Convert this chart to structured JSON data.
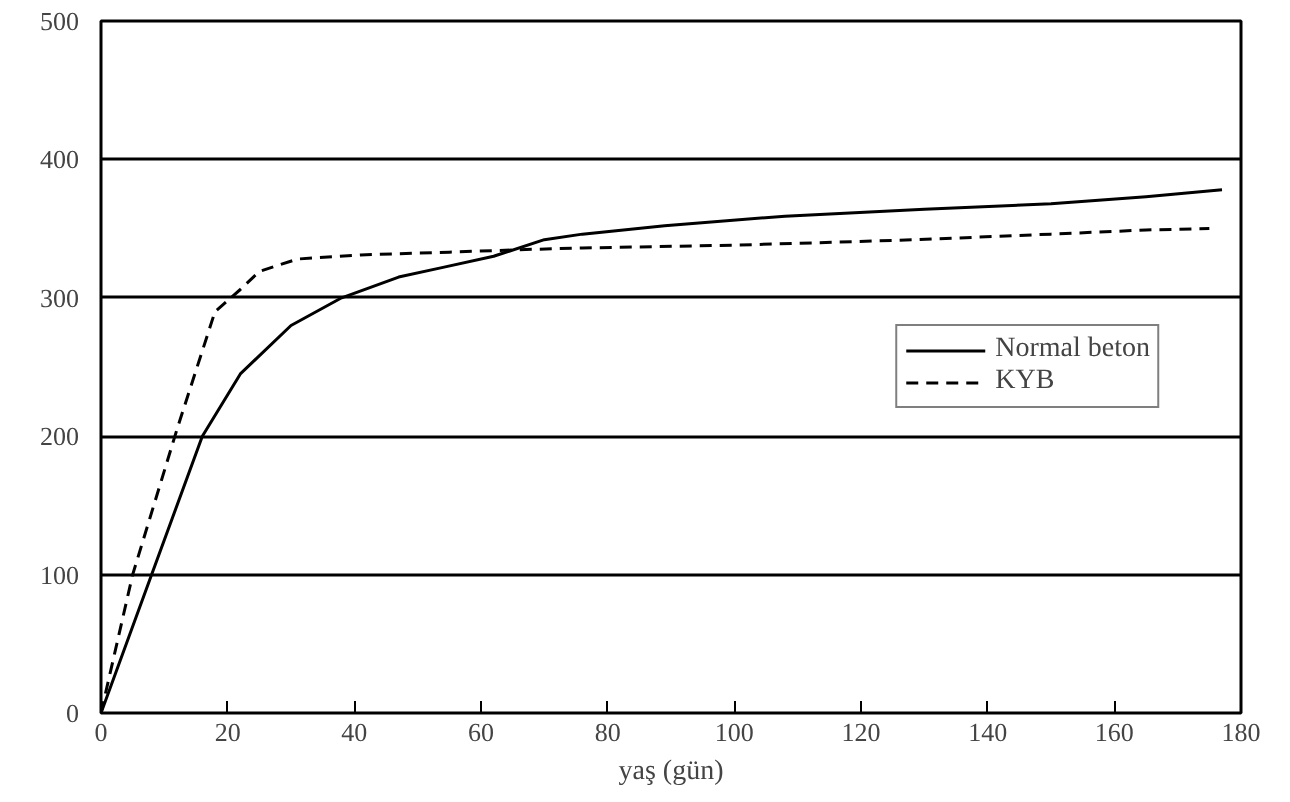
{
  "chart_data": {
    "type": "line",
    "xlabel": "yaş (gün)",
    "xlim": [
      0,
      180
    ],
    "xticks": [
      0,
      20,
      40,
      60,
      80,
      100,
      120,
      140,
      160,
      180
    ],
    "ylim": [
      0,
      500
    ],
    "yticks": [
      0,
      100,
      200,
      300,
      400,
      500
    ],
    "grid": "y",
    "legend": "right",
    "series": [
      {
        "name": "Normal beton",
        "color": "#000000",
        "line_style": "solid",
        "x": [
          0,
          8,
          16,
          22,
          30,
          38,
          47,
          54,
          62,
          70,
          76,
          89,
          108,
          130,
          150,
          165,
          177
        ],
        "values": [
          0,
          100,
          200,
          245,
          280,
          300,
          315,
          322,
          330,
          342,
          346,
          352,
          359,
          364,
          368,
          373,
          378
        ]
      },
      {
        "name": "KYB",
        "color": "#000000",
        "line_style": "dashed",
        "x": [
          0,
          5,
          12,
          18,
          22,
          25,
          31,
          41,
          55,
          68,
          76,
          100,
          129,
          150,
          165,
          175
        ],
        "values": [
          0,
          100,
          205,
          290,
          306,
          319,
          328,
          331,
          333,
          335,
          336,
          338,
          342,
          346,
          349,
          350
        ]
      }
    ]
  }
}
